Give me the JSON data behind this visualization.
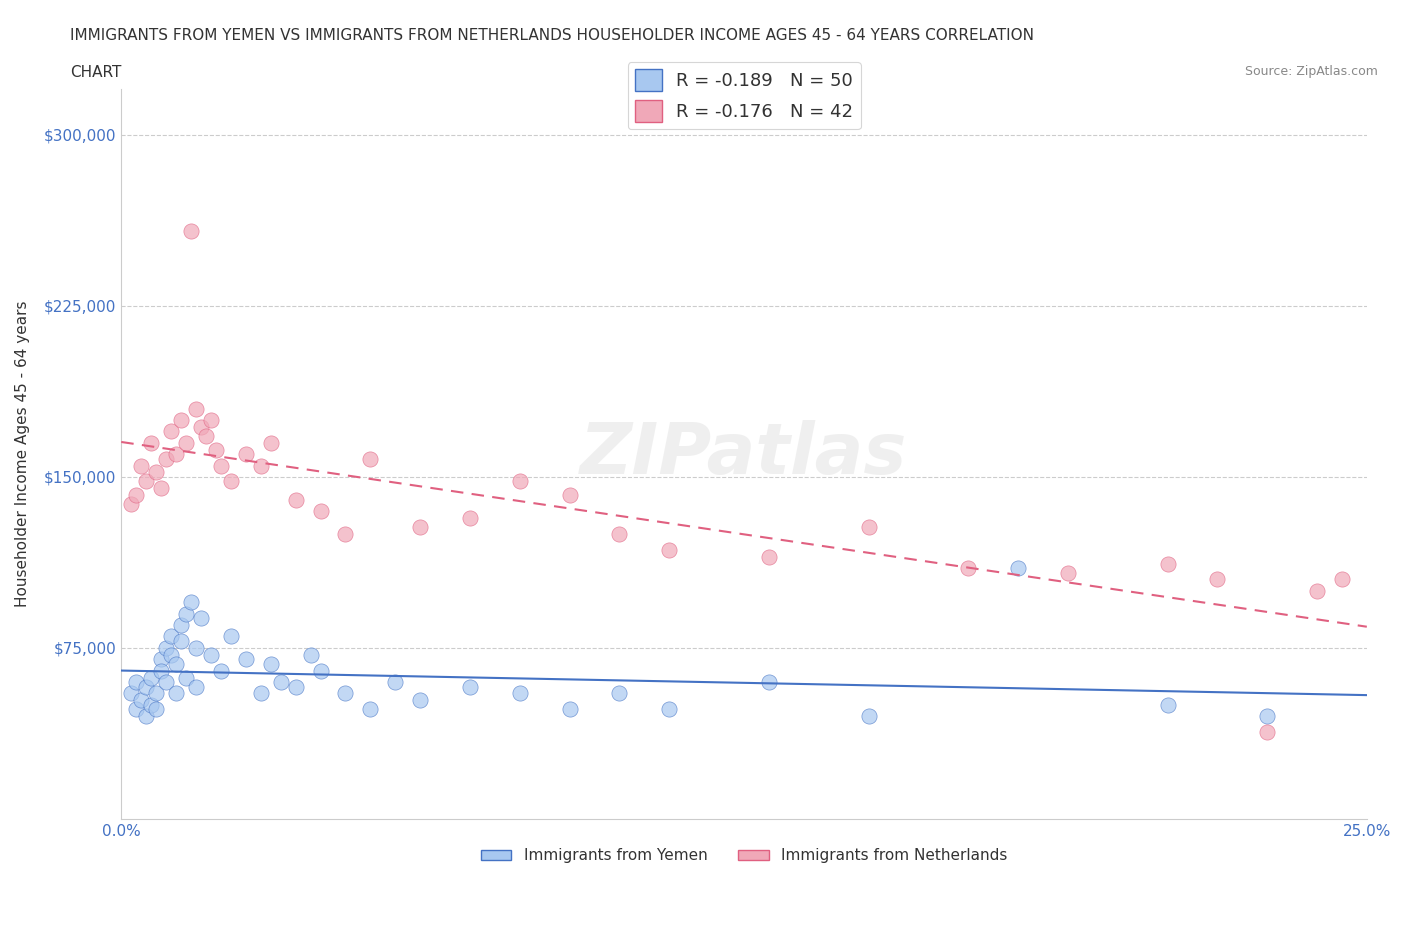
{
  "title_line1": "IMMIGRANTS FROM YEMEN VS IMMIGRANTS FROM NETHERLANDS HOUSEHOLDER INCOME AGES 45 - 64 YEARS CORRELATION",
  "title_line2": "CHART",
  "source": "Source: ZipAtlas.com",
  "ylabel": "Householder Income Ages 45 - 64 years",
  "xlim": [
    0.0,
    0.25
  ],
  "ylim": [
    0,
    320000
  ],
  "yticks": [
    0,
    75000,
    150000,
    225000,
    300000
  ],
  "ytick_labels": [
    "",
    "$75,000",
    "$150,000",
    "$225,000",
    "$300,000"
  ],
  "xticks": [
    0.0,
    0.05,
    0.1,
    0.15,
    0.2,
    0.25
  ],
  "xtick_labels": [
    "0.0%",
    "",
    "",
    "",
    "",
    "25.0%"
  ],
  "legend_r1": "R = -0.189   N = 50",
  "legend_r2": "R = -0.176   N = 42",
  "color_yemen": "#a8c8f0",
  "color_netherlands": "#f0a8b8",
  "color_line_yemen": "#4472c4",
  "color_line_netherlands": "#e06080",
  "label_yemen": "Immigrants from Yemen",
  "label_netherlands": "Immigrants from Netherlands",
  "yemen_x": [
    0.002,
    0.003,
    0.003,
    0.004,
    0.005,
    0.005,
    0.006,
    0.006,
    0.007,
    0.007,
    0.008,
    0.008,
    0.009,
    0.009,
    0.01,
    0.01,
    0.011,
    0.011,
    0.012,
    0.012,
    0.013,
    0.013,
    0.014,
    0.015,
    0.015,
    0.016,
    0.018,
    0.02,
    0.022,
    0.025,
    0.028,
    0.03,
    0.032,
    0.035,
    0.038,
    0.04,
    0.045,
    0.05,
    0.055,
    0.06,
    0.07,
    0.08,
    0.09,
    0.1,
    0.11,
    0.13,
    0.15,
    0.18,
    0.21,
    0.23
  ],
  "yemen_y": [
    55000,
    60000,
    48000,
    52000,
    58000,
    45000,
    62000,
    50000,
    55000,
    48000,
    70000,
    65000,
    75000,
    60000,
    80000,
    72000,
    68000,
    55000,
    85000,
    78000,
    90000,
    62000,
    95000,
    75000,
    58000,
    88000,
    72000,
    65000,
    80000,
    70000,
    55000,
    68000,
    60000,
    58000,
    72000,
    65000,
    55000,
    48000,
    60000,
    52000,
    58000,
    55000,
    48000,
    55000,
    48000,
    60000,
    45000,
    110000,
    50000,
    45000
  ],
  "netherlands_x": [
    0.002,
    0.003,
    0.004,
    0.005,
    0.006,
    0.007,
    0.008,
    0.009,
    0.01,
    0.011,
    0.012,
    0.013,
    0.014,
    0.015,
    0.016,
    0.017,
    0.018,
    0.019,
    0.02,
    0.022,
    0.025,
    0.028,
    0.03,
    0.035,
    0.04,
    0.045,
    0.05,
    0.06,
    0.07,
    0.08,
    0.09,
    0.1,
    0.11,
    0.13,
    0.15,
    0.17,
    0.19,
    0.21,
    0.22,
    0.23,
    0.24,
    0.245
  ],
  "netherlands_y": [
    138000,
    142000,
    155000,
    148000,
    165000,
    152000,
    145000,
    158000,
    170000,
    160000,
    175000,
    165000,
    258000,
    180000,
    172000,
    168000,
    175000,
    162000,
    155000,
    148000,
    160000,
    155000,
    165000,
    140000,
    135000,
    125000,
    158000,
    128000,
    132000,
    148000,
    142000,
    125000,
    118000,
    115000,
    128000,
    110000,
    108000,
    112000,
    105000,
    38000,
    100000,
    105000
  ]
}
